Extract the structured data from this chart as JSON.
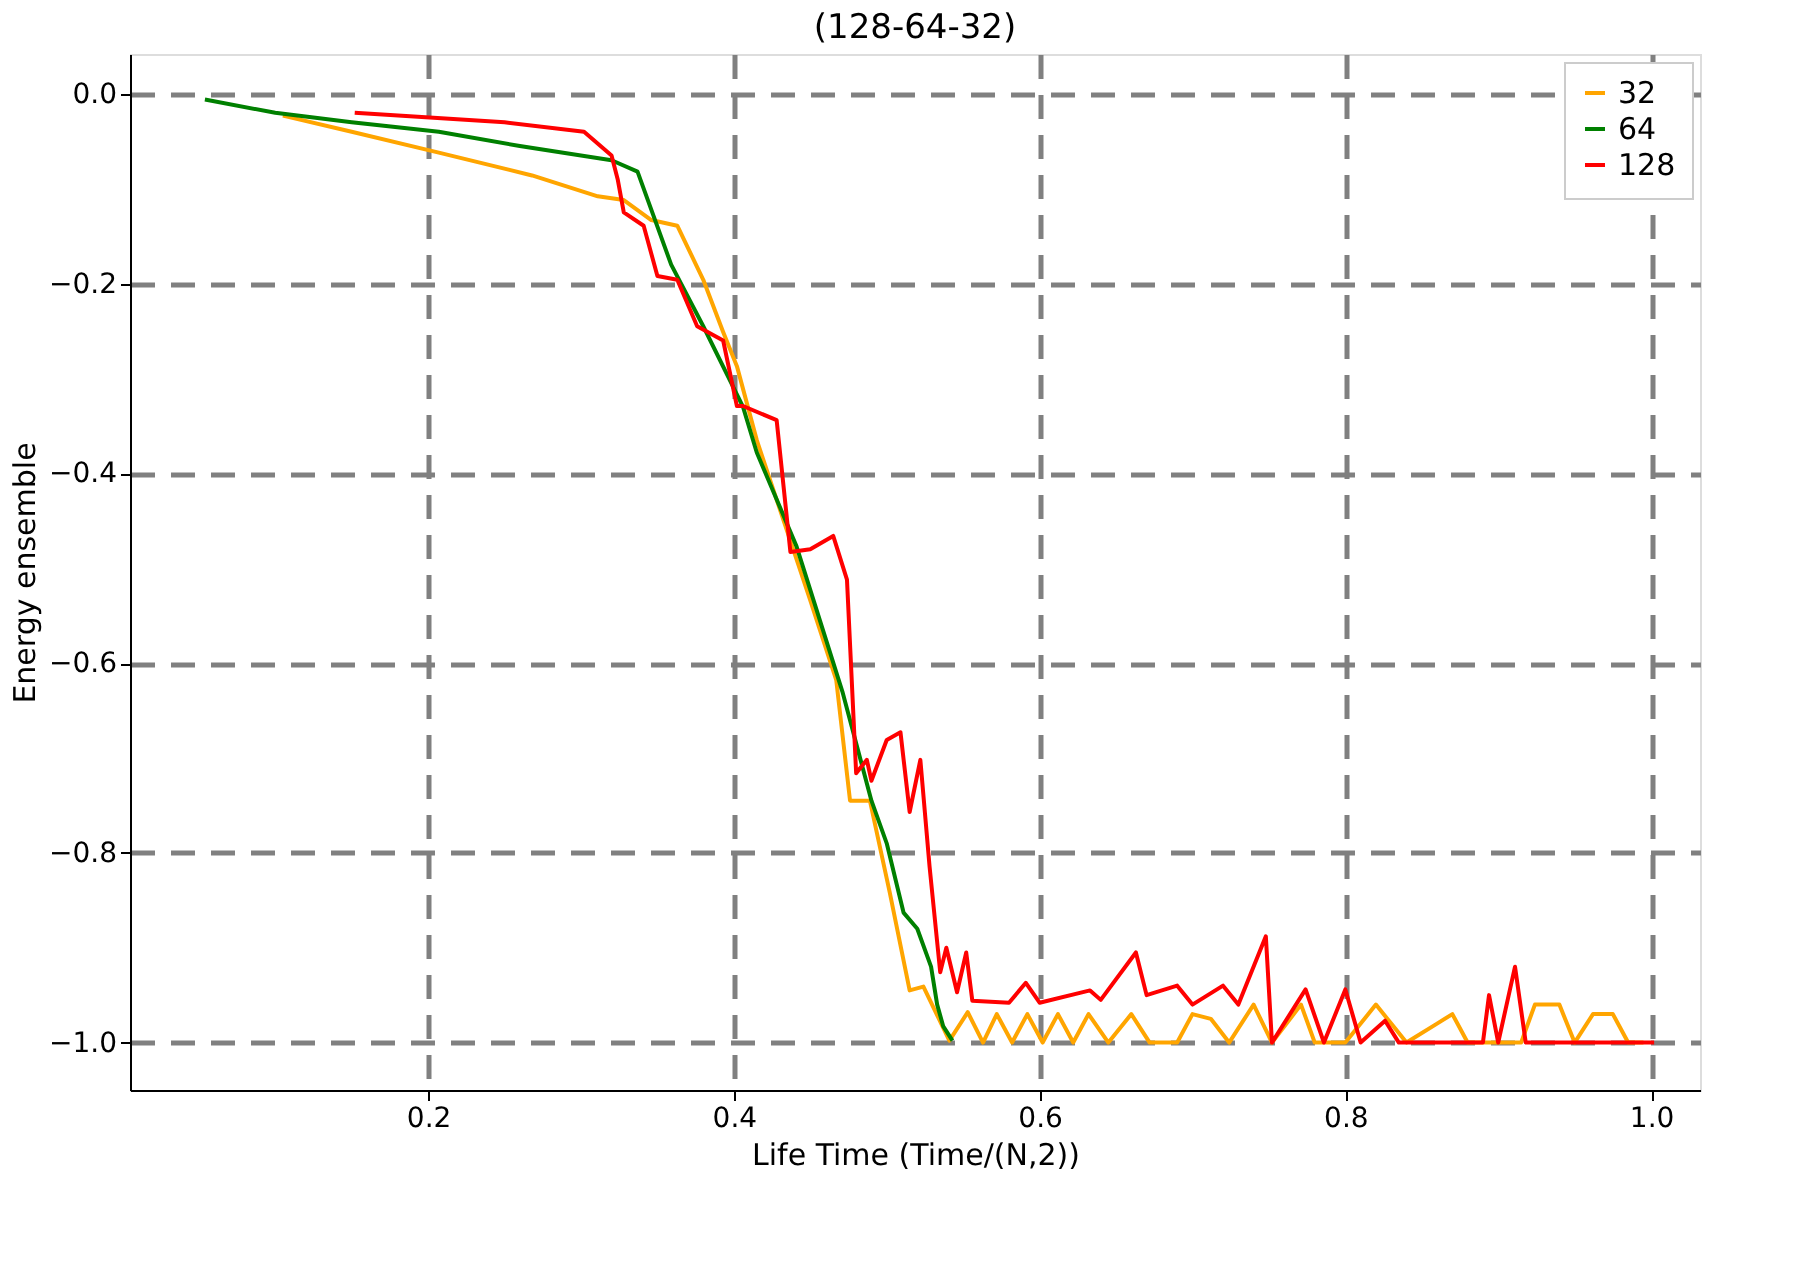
{
  "chart_data": {
    "type": "line",
    "title": "(128-64-32)",
    "xlabel": "Life Time (Time/(N,2))",
    "ylabel": "Energy ensemble",
    "xlim": [
      0.005,
      1.032
    ],
    "ylim": [
      -1.05,
      0.042
    ],
    "xticks": [
      {
        "value": 0.2,
        "label": "0.2"
      },
      {
        "value": 0.4,
        "label": "0.4"
      },
      {
        "value": 0.6,
        "label": "0.6"
      },
      {
        "value": 0.8,
        "label": "0.8"
      },
      {
        "value": 1.0,
        "label": "1.0"
      }
    ],
    "yticks": [
      {
        "value": -1.0,
        "label": "−1.0"
      },
      {
        "value": -0.8,
        "label": "−0.8"
      },
      {
        "value": -0.6,
        "label": "−0.6"
      },
      {
        "value": -0.4,
        "label": "−0.4"
      },
      {
        "value": -0.2,
        "label": "−0.2"
      },
      {
        "value": 0.0,
        "label": "0.0"
      }
    ],
    "grid": true,
    "legend": "top right",
    "line_style": "solid",
    "marker": "none",
    "series": [
      {
        "name": "32",
        "color": "#ffa500",
        "x": [
          0.105,
          0.15,
          0.207,
          0.268,
          0.311,
          0.328,
          0.346,
          0.363,
          0.38,
          0.393,
          0.402,
          0.415,
          0.45,
          0.467,
          0.476,
          0.489,
          0.502,
          0.515,
          0.524,
          0.541,
          0.553,
          0.563,
          0.572,
          0.582,
          0.592,
          0.602,
          0.612,
          0.622,
          0.632,
          0.645,
          0.66,
          0.672,
          0.69,
          0.7,
          0.712,
          0.724,
          0.74,
          0.752,
          0.771,
          0.78,
          0.8,
          0.82,
          0.83,
          0.84,
          0.86,
          0.87,
          0.88,
          0.915,
          0.924,
          0.94,
          0.95,
          0.962,
          0.975,
          0.985,
          0.995
        ],
        "values": [
          -0.023,
          -0.04,
          -0.062,
          -0.086,
          -0.108,
          -0.112,
          -0.133,
          -0.139,
          -0.196,
          -0.251,
          -0.287,
          -0.365,
          -0.534,
          -0.618,
          -0.745,
          -0.745,
          -0.842,
          -0.945,
          -0.941,
          -0.998,
          -0.968,
          -1.0,
          -0.97,
          -1.0,
          -0.97,
          -1.0,
          -0.97,
          -1.0,
          -0.97,
          -1.0,
          -0.97,
          -1.0,
          -1.0,
          -0.97,
          -0.975,
          -1.0,
          -0.96,
          -1.0,
          -0.96,
          -1.0,
          -1.0,
          -0.96,
          -0.98,
          -1.0,
          -0.98,
          -0.97,
          -1.0,
          -1.0,
          -0.96,
          -0.96,
          -1.0,
          -0.97,
          -0.97,
          -1.0,
          -1.0
        ]
      },
      {
        "name": "64",
        "color": "#008000",
        "x": [
          0.054,
          0.1,
          0.15,
          0.207,
          0.26,
          0.32,
          0.337,
          0.359,
          0.38,
          0.406,
          0.415,
          0.441,
          0.471,
          0.49,
          0.5,
          0.511,
          0.52,
          0.529,
          0.533,
          0.537,
          0.543
        ],
        "values": [
          -0.006,
          -0.02,
          -0.03,
          -0.04,
          -0.055,
          -0.07,
          -0.082,
          -0.18,
          -0.245,
          -0.33,
          -0.378,
          -0.477,
          -0.63,
          -0.745,
          -0.79,
          -0.863,
          -0.88,
          -0.92,
          -0.96,
          -0.983,
          -0.998
        ]
      },
      {
        "name": "128",
        "color": "#ff0000",
        "x": [
          0.152,
          0.25,
          0.302,
          0.32,
          0.324,
          0.328,
          0.341,
          0.35,
          0.363,
          0.376,
          0.393,
          0.402,
          0.406,
          0.428,
          0.437,
          0.45,
          0.465,
          0.474,
          0.48,
          0.487,
          0.49,
          0.5,
          0.509,
          0.515,
          0.522,
          0.528,
          0.535,
          0.539,
          0.546,
          0.552,
          0.556,
          0.58,
          0.591,
          0.6,
          0.633,
          0.64,
          0.663,
          0.67,
          0.69,
          0.7,
          0.72,
          0.73,
          0.748,
          0.752,
          0.774,
          0.786,
          0.8,
          0.81,
          0.826,
          0.835,
          0.89,
          0.894,
          0.9,
          0.911,
          0.918,
          1.002
        ],
        "values": [
          -0.02,
          -0.03,
          -0.04,
          -0.065,
          -0.09,
          -0.125,
          -0.139,
          -0.192,
          -0.196,
          -0.245,
          -0.26,
          -0.329,
          -0.329,
          -0.344,
          -0.483,
          -0.48,
          -0.466,
          -0.512,
          -0.716,
          -0.702,
          -0.724,
          -0.681,
          -0.673,
          -0.757,
          -0.702,
          -0.814,
          -0.926,
          -0.9,
          -0.947,
          -0.905,
          -0.956,
          -0.958,
          -0.937,
          -0.958,
          -0.945,
          -0.955,
          -0.905,
          -0.95,
          -0.94,
          -0.96,
          -0.94,
          -0.96,
          -0.888,
          -1.0,
          -0.944,
          -1.0,
          -0.944,
          -1.0,
          -0.977,
          -1.0,
          -1.0,
          -0.95,
          -1.0,
          -0.92,
          -1.0,
          -1.0
        ]
      }
    ]
  }
}
